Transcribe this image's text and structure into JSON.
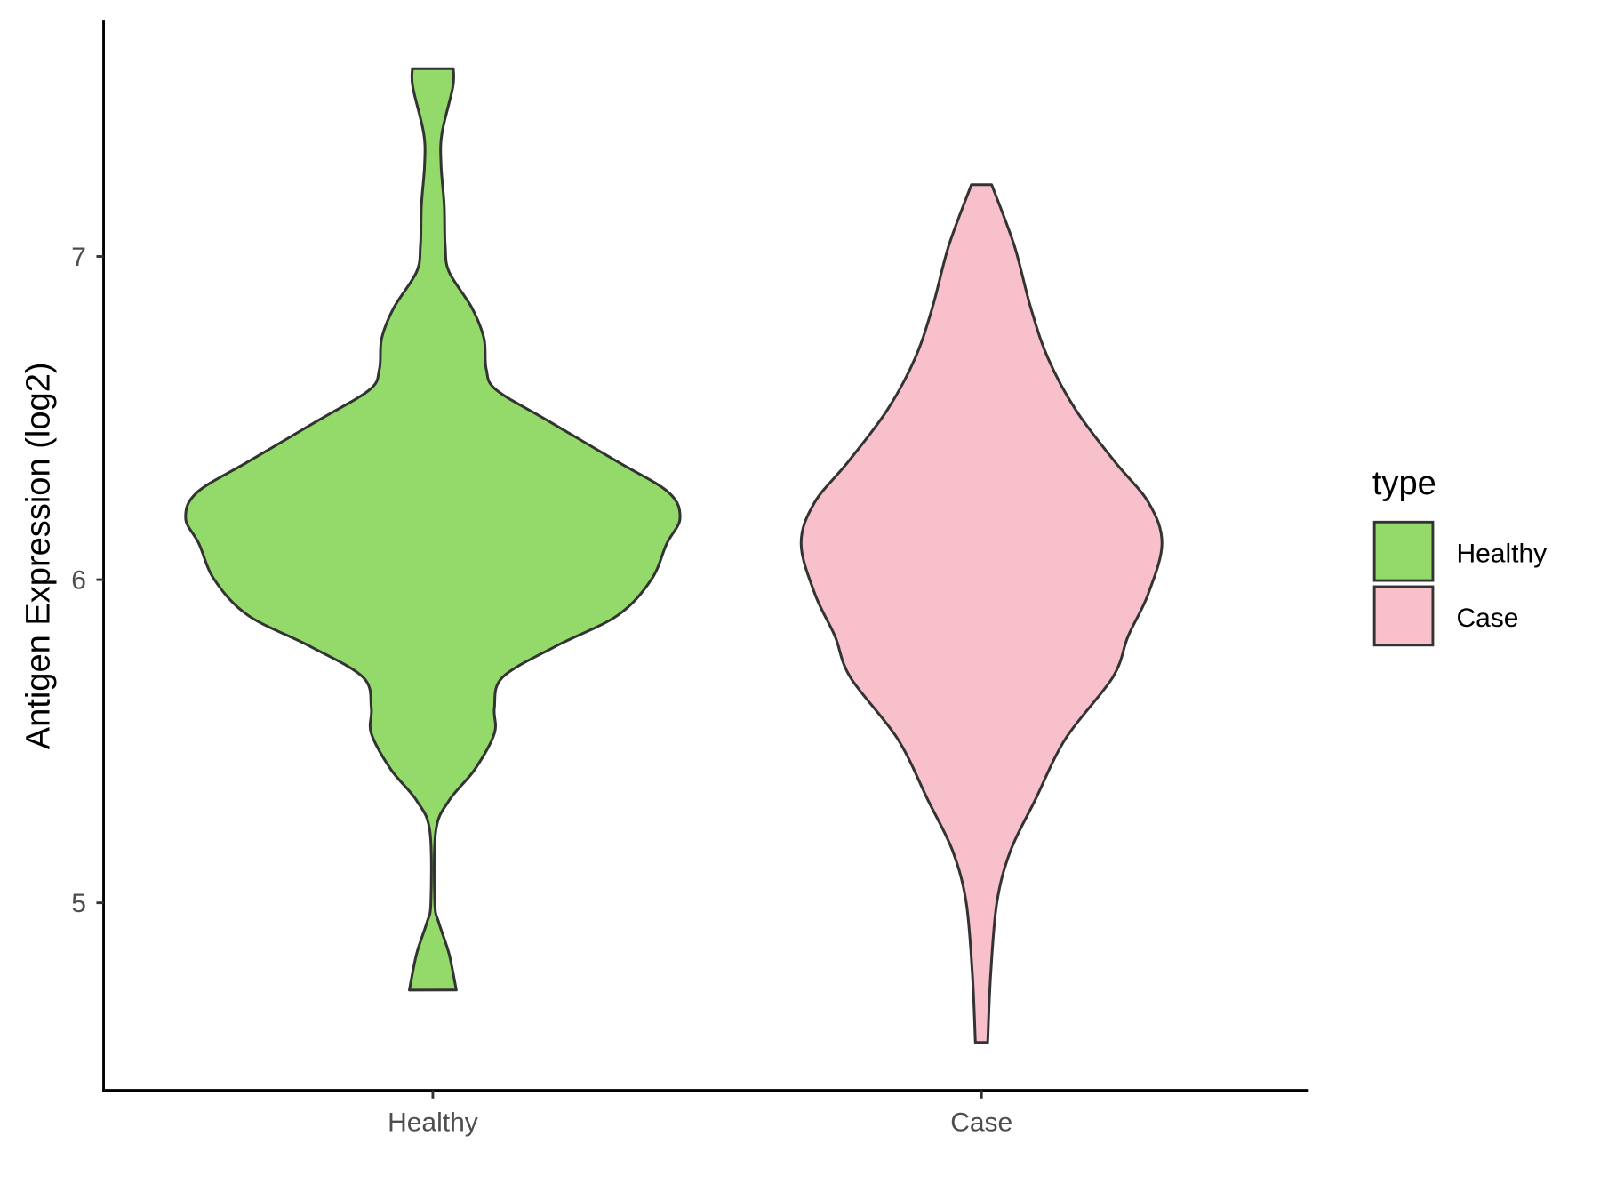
{
  "chart_data": {
    "type": "violin",
    "title": "",
    "xlabel": "",
    "ylabel": "Antigen Expression (log2)",
    "ylim": [
      4.42,
      7.73
    ],
    "yticks": [
      5,
      6,
      7
    ],
    "ytick_labels": [
      "5",
      "6",
      "7"
    ],
    "categories": [
      "Healthy",
      "Case"
    ],
    "grid": false,
    "legend": {
      "title": "type",
      "position": "right",
      "entries": [
        {
          "label": "Healthy",
          "color": "#93DA6A"
        },
        {
          "label": "Case",
          "color": "#F7C0CB"
        }
      ]
    },
    "outline_color": "#333333",
    "series": [
      {
        "name": "Healthy",
        "color": "#93DA6A",
        "min": 4.73,
        "max": 7.58,
        "density_profile": [
          [
            7.581,
            0.083
          ],
          [
            7.524,
            0.081
          ],
          [
            7.381,
            0.037
          ],
          [
            7.286,
            0.033
          ],
          [
            7.159,
            0.046
          ],
          [
            7.032,
            0.05
          ],
          [
            6.952,
            0.066
          ],
          [
            6.841,
            0.158
          ],
          [
            6.746,
            0.207
          ],
          [
            6.651,
            0.216
          ],
          [
            6.587,
            0.257
          ],
          [
            6.492,
            0.465
          ],
          [
            6.365,
            0.747
          ],
          [
            6.27,
            0.954
          ],
          [
            6.19,
            1.0
          ],
          [
            6.111,
            0.946
          ],
          [
            6.0,
            0.884
          ],
          [
            5.889,
            0.747
          ],
          [
            5.794,
            0.498
          ],
          [
            5.698,
            0.282
          ],
          [
            5.603,
            0.249
          ],
          [
            5.524,
            0.249
          ],
          [
            5.413,
            0.17
          ],
          [
            5.317,
            0.066
          ],
          [
            5.222,
            0.012
          ],
          [
            5.0,
            0.008
          ],
          [
            4.937,
            0.025
          ],
          [
            4.841,
            0.066
          ],
          [
            4.73,
            0.095
          ]
        ]
      },
      {
        "name": "Case",
        "color": "#F7C0CB",
        "min": 4.57,
        "max": 7.22,
        "density_profile": [
          [
            7.222,
            0.041
          ],
          [
            7.032,
            0.133
          ],
          [
            6.841,
            0.199
          ],
          [
            6.683,
            0.27
          ],
          [
            6.524,
            0.382
          ],
          [
            6.365,
            0.539
          ],
          [
            6.238,
            0.676
          ],
          [
            6.111,
            0.73
          ],
          [
            5.952,
            0.672
          ],
          [
            5.825,
            0.593
          ],
          [
            5.698,
            0.531
          ],
          [
            5.508,
            0.34
          ],
          [
            5.317,
            0.216
          ],
          [
            5.159,
            0.116
          ],
          [
            5.0,
            0.062
          ],
          [
            4.778,
            0.037
          ],
          [
            4.568,
            0.025
          ]
        ]
      }
    ]
  }
}
